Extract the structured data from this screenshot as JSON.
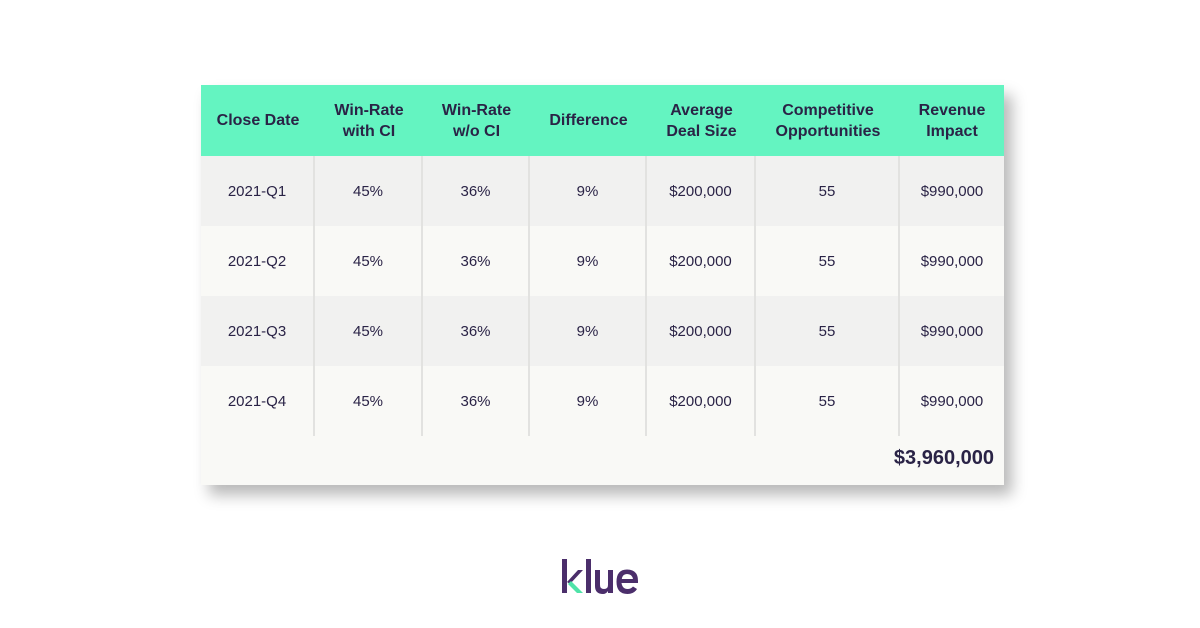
{
  "table": {
    "headers": [
      "Close Date",
      "Win-Rate\nwith CI",
      "Win-Rate\nw/o CI",
      "Difference",
      "Average\nDeal Size",
      "Competitive\nOpportunities",
      "Revenue\nImpact"
    ],
    "rows": [
      [
        "2021-Q1",
        "45%",
        "36%",
        "9%",
        "$200,000",
        "55",
        "$990,000"
      ],
      [
        "2021-Q2",
        "45%",
        "36%",
        "9%",
        "$200,000",
        "55",
        "$990,000"
      ],
      [
        "2021-Q3",
        "45%",
        "36%",
        "9%",
        "$200,000",
        "55",
        "$990,000"
      ],
      [
        "2021-Q4",
        "45%",
        "36%",
        "9%",
        "$200,000",
        "55",
        "$990,000"
      ]
    ],
    "total": "$3,960,000"
  },
  "logo": {
    "text": "klue"
  },
  "colors": {
    "header_bg": "#64f4c1",
    "text": "#2a2346",
    "logo_purple": "#4b2e6b",
    "logo_green": "#4fe3a8"
  }
}
